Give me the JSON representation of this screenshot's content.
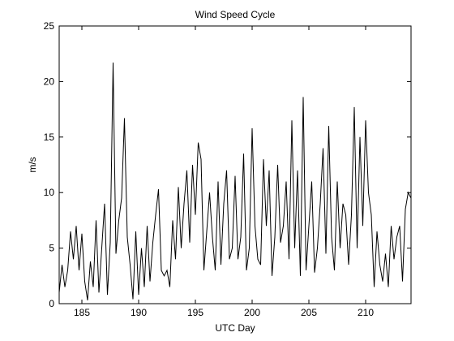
{
  "chart_data": {
    "type": "line",
    "title": "Wind Speed Cycle",
    "x_label": "UTC Day",
    "y_label": "m/s",
    "x": [
      183,
      183.25,
      183.5,
      183.75,
      184,
      184.25,
      184.5,
      184.75,
      185,
      185.25,
      185.5,
      185.75,
      186,
      186.25,
      186.5,
      186.75,
      187,
      187.25,
      187.5,
      187.75,
      188,
      188.25,
      188.5,
      188.75,
      189,
      189.25,
      189.5,
      189.75,
      190,
      190.25,
      190.5,
      190.75,
      191,
      191.25,
      191.5,
      191.75,
      192,
      192.25,
      192.5,
      192.75,
      193,
      193.25,
      193.5,
      193.75,
      194,
      194.25,
      194.5,
      194.75,
      195,
      195.25,
      195.5,
      195.75,
      196,
      196.25,
      196.5,
      196.75,
      197,
      197.25,
      197.5,
      197.75,
      198,
      198.25,
      198.5,
      198.75,
      199,
      199.25,
      199.5,
      199.75,
      200,
      200.25,
      200.5,
      200.75,
      201,
      201.25,
      201.5,
      201.75,
      202,
      202.25,
      202.5,
      202.75,
      203,
      203.25,
      203.5,
      203.75,
      204,
      204.25,
      204.5,
      204.75,
      205,
      205.25,
      205.5,
      205.75,
      206,
      206.25,
      206.5,
      206.75,
      207,
      207.25,
      207.5,
      207.75,
      208,
      208.25,
      208.5,
      208.75,
      209,
      209.25,
      209.5,
      209.75,
      210,
      210.25,
      210.5,
      210.75,
      211,
      211.25,
      211.5,
      211.75,
      212,
      212.25,
      212.5,
      212.75,
      213,
      213.25,
      213.5,
      213.75,
      214
    ],
    "series": [
      {
        "color": "#000000",
        "values": [
          1,
          3.5,
          1.5,
          3,
          6.5,
          4,
          7,
          3,
          6.3,
          2,
          0.3,
          3.8,
          1.5,
          7.5,
          1,
          5,
          9,
          0.8,
          5.5,
          21.7,
          4.5,
          7.5,
          9.5,
          16.7,
          6,
          3.5,
          0.4,
          6.5,
          0.8,
          5,
          1.5,
          7,
          2,
          5.5,
          8,
          10.3,
          3,
          2.5,
          3,
          1.5,
          7.5,
          4,
          10.5,
          5,
          9,
          12,
          5.5,
          12.5,
          8,
          14.5,
          13,
          3,
          6.5,
          10,
          6,
          3,
          11,
          3.5,
          9,
          12,
          4,
          5,
          11.5,
          4,
          6,
          13.5,
          3,
          5,
          15.8,
          7,
          4,
          3.5,
          13,
          7,
          12,
          2.5,
          6,
          12.5,
          5.5,
          7,
          11,
          4,
          16.5,
          5,
          12,
          2.5,
          18.6,
          3,
          7,
          11,
          2.8,
          5,
          9,
          14,
          4.5,
          16,
          6,
          3,
          11,
          5,
          9,
          8,
          3.5,
          8,
          17.7,
          5,
          15,
          7,
          16.5,
          10,
          8,
          1.5,
          6.5,
          3.5,
          2,
          4.5,
          1.5,
          7,
          4,
          6,
          7,
          2,
          8.5,
          10,
          9.5
        ]
      }
    ],
    "xlim": [
      183,
      214
    ],
    "ylim": [
      0,
      25
    ],
    "xticks": [
      185,
      190,
      195,
      200,
      205,
      210
    ],
    "yticks": [
      0,
      5,
      10,
      15,
      20,
      25
    ]
  }
}
